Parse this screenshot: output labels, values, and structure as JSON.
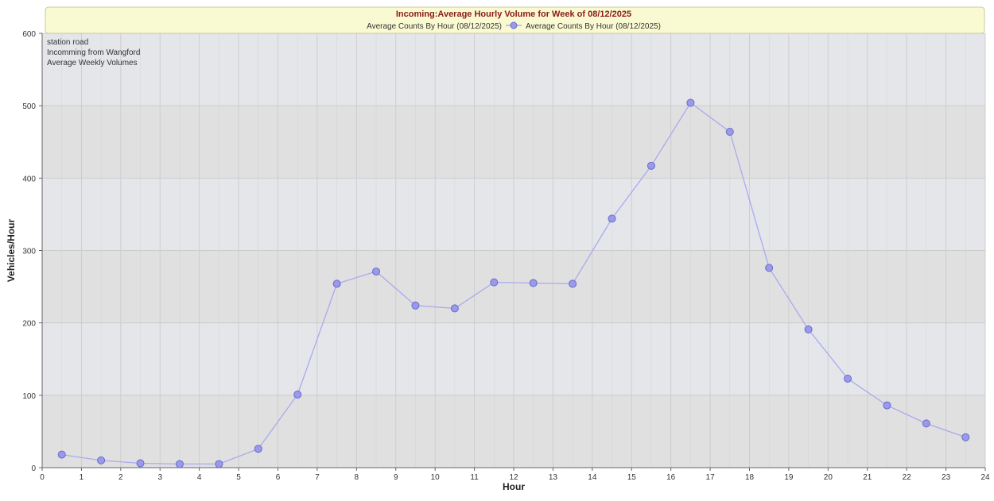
{
  "chart_data": {
    "type": "line",
    "title": "Incoming:Average Hourly Volume for Week of 08/12/2025",
    "legend_entries": [
      "Average Counts By Hour (08/12/2025)",
      "Average Counts By Hour (08/12/2025)"
    ],
    "legend_placement": "top-center",
    "annotation_lines": [
      "station road",
      "Incomming from Wangford",
      "Average Weekly Volumes"
    ],
    "xlabel": "Hour",
    "ylabel": "Vehicles/Hour",
    "xlim": [
      0,
      24
    ],
    "ylim": [
      0,
      600
    ],
    "x_ticks": [
      "0",
      "1",
      "2",
      "3",
      "4",
      "5",
      "6",
      "7",
      "8",
      "9",
      "10",
      "11",
      "12",
      "13",
      "14",
      "15",
      "16",
      "17",
      "18",
      "19",
      "20",
      "21",
      "22",
      "23",
      "24"
    ],
    "y_ticks": [
      "0",
      "100",
      "200",
      "300",
      "400",
      "500",
      "600"
    ],
    "grid": true,
    "series": [
      {
        "color": "#aaaaee",
        "marker_color": "#9a9ae8",
        "points": [
          {
            "x": 0.5,
            "y": 18
          },
          {
            "x": 1.5,
            "y": 10
          },
          {
            "x": 2.5,
            "y": 6
          },
          {
            "x": 3.5,
            "y": 5
          },
          {
            "x": 4.5,
            "y": 5
          },
          {
            "x": 5.5,
            "y": 26
          },
          {
            "x": 6.5,
            "y": 101
          },
          {
            "x": 7.5,
            "y": 254
          },
          {
            "x": 8.5,
            "y": 271
          },
          {
            "x": 9.5,
            "y": 224
          },
          {
            "x": 10.5,
            "y": 220
          },
          {
            "x": 11.5,
            "y": 256
          },
          {
            "x": 12.5,
            "y": 255
          },
          {
            "x": 13.5,
            "y": 254
          },
          {
            "x": 14.5,
            "y": 344
          },
          {
            "x": 15.5,
            "y": 417
          },
          {
            "x": 16.5,
            "y": 504
          },
          {
            "x": 17.5,
            "y": 464
          },
          {
            "x": 18.5,
            "y": 276
          },
          {
            "x": 19.5,
            "y": 191
          },
          {
            "x": 20.5,
            "y": 123
          },
          {
            "x": 21.5,
            "y": 86
          },
          {
            "x": 22.5,
            "y": 61
          },
          {
            "x": 23.5,
            "y": 42
          }
        ]
      }
    ]
  },
  "colors": {
    "header_bg": "#fafad2",
    "header_border": "#c8c8a0",
    "title": "#8b1a1a",
    "band_light": "#e4e6ea",
    "band_dark": "#e0e0e0",
    "grid": "#cccccc"
  }
}
